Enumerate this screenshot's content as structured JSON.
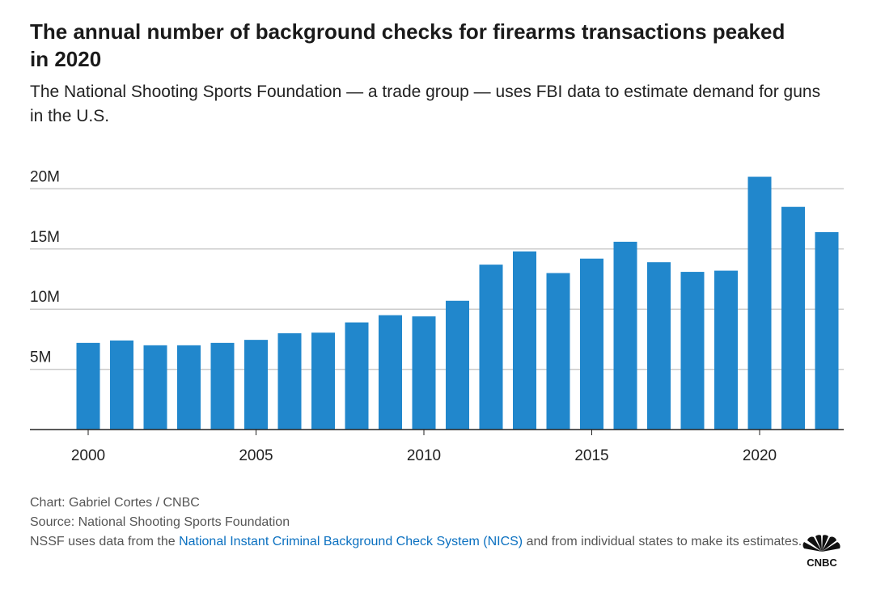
{
  "title": "The annual number of background checks for firearms transactions peaked in 2020",
  "subtitle": "The National Shooting Sports Foundation — a trade group — uses FBI data to estimate demand for guns in the U.S.",
  "footer": {
    "credit": "Chart: Gabriel Cortes / CNBC",
    "source": "Source: National Shooting Sports Foundation",
    "note_before": "NSSF uses data from the ",
    "note_link": "National Instant Criminal Background Check System (NICS)",
    "note_after": " and from individual states to make its estimates.",
    "logo": "CNBC"
  },
  "colors": {
    "bar": "#2187cc",
    "grid": "#cccccc"
  },
  "chart_data": {
    "type": "bar",
    "title": "The annual number of background checks for firearms transactions peaked in 2020",
    "xlabel": "",
    "ylabel": "",
    "categories": [
      2000,
      2001,
      2002,
      2003,
      2004,
      2005,
      2006,
      2007,
      2008,
      2009,
      2010,
      2011,
      2012,
      2013,
      2014,
      2015,
      2016,
      2017,
      2018,
      2019,
      2020,
      2021,
      2022
    ],
    "values": [
      7.2,
      7.4,
      7.0,
      7.0,
      7.2,
      7.45,
      8.0,
      8.05,
      8.9,
      9.5,
      9.4,
      10.7,
      13.7,
      14.8,
      13.0,
      14.2,
      15.6,
      13.9,
      13.1,
      13.2,
      21.0,
      18.5,
      16.4
    ],
    "unit": "millions",
    "ylim": [
      0,
      20
    ],
    "yticks": [
      {
        "v": 5,
        "label": "5M"
      },
      {
        "v": 10,
        "label": "10M"
      },
      {
        "v": 15,
        "label": "15M"
      },
      {
        "v": 20,
        "label": "20M"
      }
    ],
    "xticks": [
      {
        "v": 2000,
        "label": "2000"
      },
      {
        "v": 2005,
        "label": "2005"
      },
      {
        "v": 2010,
        "label": "2010"
      },
      {
        "v": 2015,
        "label": "2015"
      },
      {
        "v": 2020,
        "label": "2020"
      }
    ],
    "grid": true,
    "legend": "none"
  }
}
